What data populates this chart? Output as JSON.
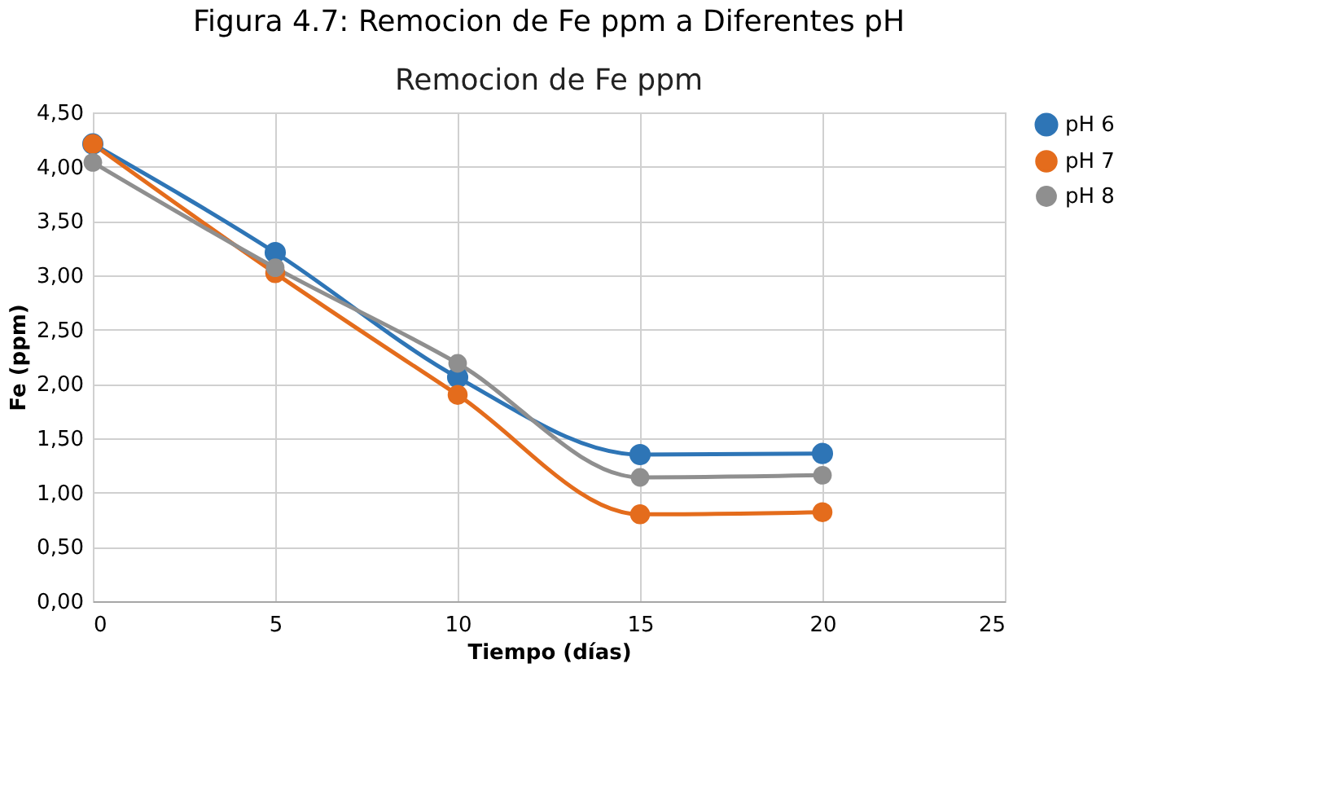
{
  "chart_data": {
    "type": "line",
    "title": "Figura 4.7: Remocion de Fe ppm a Diferentes pH",
    "subtitle": "Remocion de Fe ppm",
    "xlabel": "Tiempo (días)",
    "ylabel": "Fe (ppm)",
    "x": [
      0,
      5,
      10,
      15,
      20
    ],
    "series": [
      {
        "name": "pH 6",
        "color": "#2e75b6",
        "values": [
          4.21,
          3.21,
          2.06,
          1.35,
          1.36
        ]
      },
      {
        "name": "pH 7",
        "color": "#e46c1c",
        "values": [
          4.21,
          3.02,
          1.9,
          0.8,
          0.82
        ]
      },
      {
        "name": "pH 8",
        "color": "#8f8f8f",
        "values": [
          4.04,
          3.07,
          2.19,
          1.14,
          1.16
        ]
      }
    ],
    "xlim": [
      0,
      25
    ],
    "xticks": [
      0,
      5,
      10,
      15,
      20,
      25
    ],
    "ylim": [
      0,
      4.5
    ],
    "yticks": [
      {
        "value": 0,
        "label": "0,00"
      },
      {
        "value": 0.5,
        "label": "0,50"
      },
      {
        "value": 1,
        "label": "1,00"
      },
      {
        "value": 1.5,
        "label": "1,50"
      },
      {
        "value": 2,
        "label": "2,00"
      },
      {
        "value": 2.5,
        "label": "2,50"
      },
      {
        "value": 3,
        "label": "3,00"
      },
      {
        "value": 3.5,
        "label": "3,50"
      },
      {
        "value": 4,
        "label": "4,00"
      },
      {
        "value": 4.5,
        "label": "4,50"
      }
    ],
    "grid": true,
    "legend": "right",
    "marker": "circle",
    "line_style": "solid"
  }
}
